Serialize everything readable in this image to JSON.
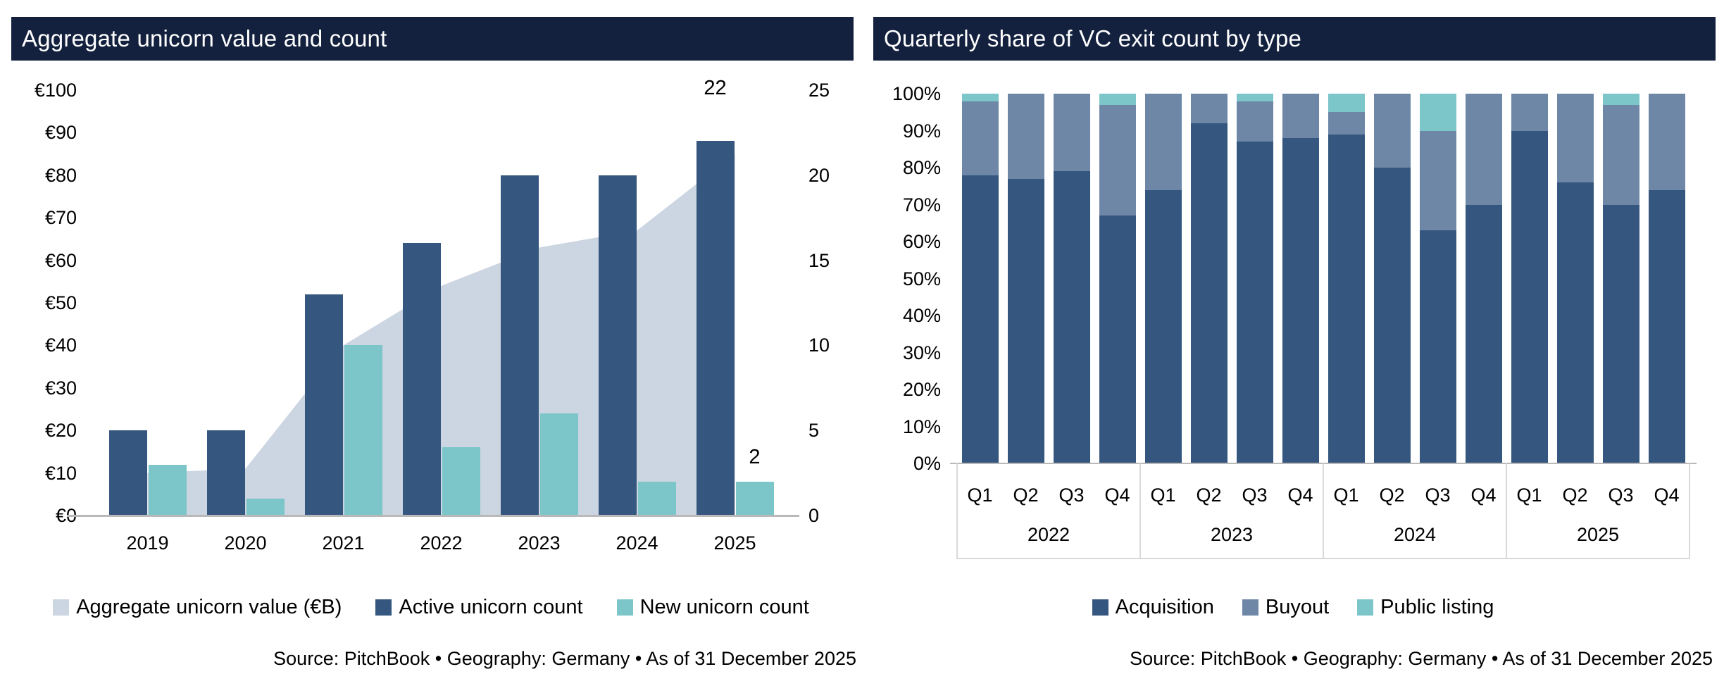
{
  "left_chart": {
    "title": "Aggregate unicorn value and count",
    "source": "Source: PitchBook • Geography: Germany • As of 31 December 2025"
  },
  "right_chart": {
    "title": "Quarterly share of VC exit count by type",
    "source": "Source: PitchBook • Geography: Germany • As of 31 December 2025"
  },
  "colors": {
    "header_bg": "#13213e",
    "navy": "#35567e",
    "buyout_blue": "#6e87a7",
    "teal": "#7cc5c8",
    "area_fill": "#ccd5e2",
    "axis_line": "#b9b9b9",
    "group_box_line": "#d9d9d9"
  },
  "chart_data": [
    {
      "type": "area",
      "subtype": "combo-area-and-grouped-bars",
      "title": "Aggregate unicorn value and count",
      "categories": [
        "2019",
        "2020",
        "2021",
        "2022",
        "2023",
        "2024",
        "2025"
      ],
      "series": [
        {
          "name": "Aggregate unicorn value (€B)",
          "render": "area",
          "axis": "left",
          "color": "#ccd5e2",
          "values": [
            10,
            11,
            40,
            54,
            63,
            67,
            85
          ]
        },
        {
          "name": "Active unicorn count",
          "render": "bar",
          "axis": "right",
          "color": "#35567e",
          "values": [
            5,
            5,
            13,
            16,
            20,
            20,
            22
          ]
        },
        {
          "name": "New unicorn count",
          "render": "bar",
          "axis": "right",
          "color": "#7cc5c8",
          "values": [
            3,
            1,
            10,
            4,
            6,
            2,
            2
          ]
        }
      ],
      "left_axis": {
        "min": 0,
        "max": 100,
        "ticks": [
          0,
          10,
          20,
          30,
          40,
          50,
          60,
          70,
          80,
          90,
          100
        ],
        "tick_labels": [
          "€0",
          "€10",
          "€20",
          "€30",
          "€40",
          "€50",
          "€60",
          "€70",
          "€80",
          "€90",
          "€100"
        ]
      },
      "right_axis": {
        "min": 0,
        "max": 25,
        "ticks": [
          0,
          5,
          10,
          15,
          20,
          25
        ],
        "tick_labels": [
          "0",
          "5",
          "10",
          "15",
          "20",
          "25"
        ]
      },
      "bar_labels": [
        {
          "category": "2025",
          "series": "Active unicorn count",
          "text": "22"
        },
        {
          "category": "2025",
          "series": "New unicorn count",
          "text": "2"
        }
      ],
      "legend_position": "bottom",
      "grid": false
    },
    {
      "type": "bar",
      "subtype": "stacked-100-percent",
      "title": "Quarterly share of VC exit count by type",
      "x_groups": [
        {
          "label": "2022",
          "quarters": [
            "Q1",
            "Q2",
            "Q3",
            "Q4"
          ]
        },
        {
          "label": "2023",
          "quarters": [
            "Q1",
            "Q2",
            "Q3",
            "Q4"
          ]
        },
        {
          "label": "2024",
          "quarters": [
            "Q1",
            "Q2",
            "Q3",
            "Q4"
          ]
        },
        {
          "label": "2025",
          "quarters": [
            "Q1",
            "Q2",
            "Q3",
            "Q4"
          ]
        }
      ],
      "series": [
        {
          "name": "Acquisition",
          "color": "#35567e",
          "values": [
            78,
            77,
            79,
            67,
            74,
            92,
            87,
            88,
            89,
            80,
            63,
            70,
            90,
            76,
            70,
            74
          ]
        },
        {
          "name": "Buyout",
          "color": "#6e87a7",
          "values": [
            20,
            23,
            21,
            30,
            26,
            8,
            11,
            12,
            6,
            20,
            27,
            30,
            10,
            24,
            27,
            26
          ]
        },
        {
          "name": "Public listing",
          "color": "#7cc5c8",
          "values": [
            2,
            0,
            0,
            3,
            0,
            0,
            2,
            0,
            5,
            0,
            10,
            0,
            0,
            0,
            3,
            0
          ]
        }
      ],
      "y_axis": {
        "min": 0,
        "max": 100,
        "ticks": [
          0,
          10,
          20,
          30,
          40,
          50,
          60,
          70,
          80,
          90,
          100
        ],
        "tick_labels": [
          "0%",
          "10%",
          "20%",
          "30%",
          "40%",
          "50%",
          "60%",
          "70%",
          "80%",
          "90%",
          "100%"
        ]
      },
      "legend_position": "bottom",
      "grid": false
    }
  ]
}
